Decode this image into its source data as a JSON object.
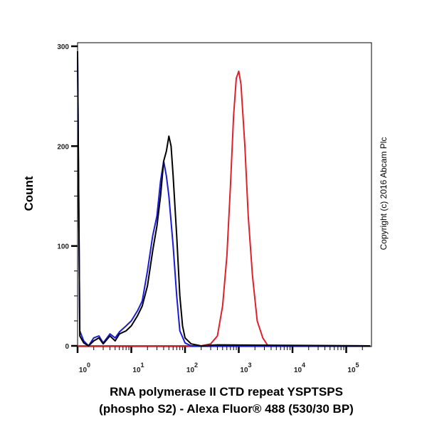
{
  "chart_data": {
    "type": "line",
    "xlabel_line1": "RNA polymerase II CTD repeat YSPTSPS",
    "xlabel_line2": "(phospho S2) - Alexa Fluor® 488 (530/30 BP)",
    "ylabel": "Count",
    "copyright": "Copyright (c) 2016 Abcam Plc",
    "x_scale": "log",
    "xlim": [
      1,
      280000
    ],
    "ylim": [
      0,
      300
    ],
    "yticks": [
      "0",
      "100",
      "200",
      "300"
    ],
    "xticks": [
      {
        "base": "10",
        "exp": "0"
      },
      {
        "base": "10",
        "exp": "1"
      },
      {
        "base": "10",
        "exp": "2"
      },
      {
        "base": "10",
        "exp": "3"
      },
      {
        "base": "10",
        "exp": "4"
      },
      {
        "base": "10",
        "exp": "5"
      }
    ],
    "grid": false,
    "series": [
      {
        "color": "#000000",
        "points": [
          [
            1,
            295
          ],
          [
            1.1,
            10
          ],
          [
            1.3,
            3
          ],
          [
            1.6,
            0
          ],
          [
            2,
            5
          ],
          [
            2.5,
            8
          ],
          [
            3,
            2
          ],
          [
            4,
            10
          ],
          [
            5,
            5
          ],
          [
            6,
            12
          ],
          [
            8,
            15
          ],
          [
            10,
            20
          ],
          [
            13,
            30
          ],
          [
            16,
            40
          ],
          [
            20,
            60
          ],
          [
            25,
            95
          ],
          [
            30,
            120
          ],
          [
            35,
            150
          ],
          [
            40,
            185
          ],
          [
            45,
            195
          ],
          [
            50,
            210
          ],
          [
            55,
            200
          ],
          [
            60,
            170
          ],
          [
            70,
            110
          ],
          [
            80,
            50
          ],
          [
            90,
            20
          ],
          [
            100,
            8
          ],
          [
            130,
            2
          ],
          [
            200,
            0
          ],
          [
            400,
            1
          ],
          [
            280000,
            0
          ]
        ]
      },
      {
        "color": "#1a1adc",
        "points": [
          [
            1,
            290
          ],
          [
            1.1,
            15
          ],
          [
            1.3,
            5
          ],
          [
            1.6,
            0
          ],
          [
            2,
            8
          ],
          [
            2.5,
            10
          ],
          [
            3,
            3
          ],
          [
            4,
            12
          ],
          [
            5,
            8
          ],
          [
            6,
            14
          ],
          [
            8,
            20
          ],
          [
            10,
            25
          ],
          [
            13,
            35
          ],
          [
            16,
            45
          ],
          [
            20,
            75
          ],
          [
            25,
            110
          ],
          [
            30,
            130
          ],
          [
            35,
            165
          ],
          [
            40,
            185
          ],
          [
            45,
            170
          ],
          [
            50,
            150
          ],
          [
            60,
            100
          ],
          [
            70,
            50
          ],
          [
            80,
            15
          ],
          [
            100,
            3
          ],
          [
            130,
            0
          ],
          [
            280000,
            0
          ]
        ]
      },
      {
        "color": "#e0202a",
        "points": [
          [
            1,
            0
          ],
          [
            200,
            0
          ],
          [
            300,
            2
          ],
          [
            400,
            10
          ],
          [
            500,
            40
          ],
          [
            600,
            90
          ],
          [
            700,
            160
          ],
          [
            800,
            230
          ],
          [
            900,
            268
          ],
          [
            1000,
            275
          ],
          [
            1100,
            262
          ],
          [
            1300,
            200
          ],
          [
            1500,
            130
          ],
          [
            1800,
            70
          ],
          [
            2200,
            25
          ],
          [
            2800,
            8
          ],
          [
            3500,
            0
          ],
          [
            280000,
            0
          ]
        ]
      }
    ]
  }
}
